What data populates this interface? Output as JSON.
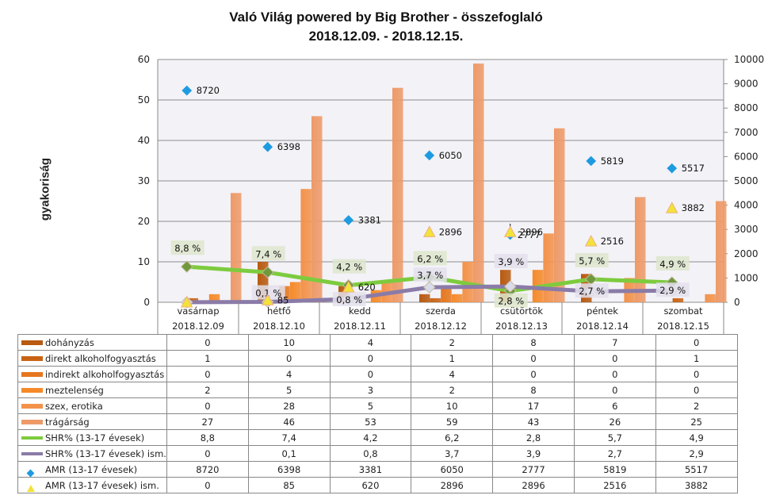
{
  "chart_data": {
    "type": "bar",
    "title": "Való Világ powered by Big Brother - összefoglaló",
    "subtitle": "2018.12.09. - 2018.12.15.",
    "ylabel": "gyakoriság",
    "ylim": [
      0,
      60
    ],
    "y_ticks": [
      "0",
      "10",
      "20",
      "30",
      "40",
      "50",
      "60"
    ],
    "y2lim": [
      0,
      10000
    ],
    "y2_ticks": [
      "0",
      "1000",
      "2000",
      "3000",
      "4000",
      "5000",
      "6000",
      "7000",
      "8000",
      "9000",
      "10000"
    ],
    "grid": true,
    "categories": [
      "vasárnap",
      "hétfő",
      "kedd",
      "szerda",
      "csütörtök",
      "péntek",
      "szombat"
    ],
    "dates": [
      "2018.12.09",
      "2018.12.10",
      "2018.12.11",
      "2018.12.12",
      "2018.12.13",
      "2018.12.14",
      "2018.12.15"
    ],
    "series": [
      {
        "name": "dohányzás",
        "kind": "bar",
        "axis": "left",
        "color": "#B85A10",
        "values": [
          0,
          10,
          4,
          2,
          8,
          7,
          0
        ]
      },
      {
        "name": "direkt alkoholfogyasztás",
        "kind": "bar",
        "axis": "left",
        "color": "#C96314",
        "values": [
          1,
          0,
          0,
          1,
          0,
          0,
          1
        ]
      },
      {
        "name": "indirekt alkoholfogyasztás",
        "kind": "bar",
        "axis": "left",
        "color": "#E5771E",
        "values": [
          0,
          4,
          0,
          4,
          0,
          0,
          0
        ]
      },
      {
        "name": "meztelenség",
        "kind": "bar",
        "axis": "left",
        "color": "#F58A2A",
        "values": [
          2,
          5,
          3,
          2,
          8,
          0,
          0
        ]
      },
      {
        "name": "szex, erotika",
        "kind": "bar",
        "axis": "left",
        "color": "#F3924A",
        "values": [
          0,
          28,
          5,
          10,
          17,
          6,
          2
        ]
      },
      {
        "name": "trágárság",
        "kind": "bar",
        "axis": "left",
        "color": "#EE9A68",
        "values": [
          27,
          46,
          53,
          59,
          43,
          26,
          25
        ]
      },
      {
        "name": "SHR% (13-17 évesek)",
        "kind": "line",
        "axis": "left",
        "color": "#7DCB3E",
        "values": [
          8.8,
          7.4,
          4.2,
          6.2,
          2.8,
          5.7,
          4.9
        ],
        "labels": [
          "8,8 %",
          "7,4 %",
          "4,2 %",
          "6,2 %",
          "2,8 %",
          "5,7 %",
          "4,9 %"
        ]
      },
      {
        "name": "SHR% (13-17 évesek) ism.",
        "kind": "line",
        "axis": "left",
        "color": "#8A7BA8",
        "values": [
          0,
          0.1,
          0.8,
          3.7,
          3.9,
          2.7,
          2.9
        ],
        "labels": [
          "",
          "0,1 %",
          "0,8 %",
          "3,7 %",
          "3,9 %",
          "2,7 %",
          "2,9 %"
        ]
      },
      {
        "name": "AMR (13-17 évesek)",
        "kind": "marker",
        "axis": "right",
        "color": "#1E9BE0",
        "values": [
          8720,
          6398,
          3381,
          6050,
          2777,
          5819,
          5517
        ]
      },
      {
        "name": "AMR (13-17 évesek) ism.",
        "kind": "marker",
        "axis": "right",
        "color": "#F2E23A",
        "values": [
          0,
          85,
          620,
          2896,
          2896,
          2516,
          3882
        ]
      }
    ],
    "table_rows": [
      {
        "label": "dohányzás",
        "cells": [
          "0",
          "10",
          "4",
          "2",
          "8",
          "7",
          "0"
        ]
      },
      {
        "label": "direkt alkoholfogyasztás",
        "cells": [
          "1",
          "0",
          "0",
          "1",
          "0",
          "0",
          "1"
        ]
      },
      {
        "label": "indirekt alkoholfogyasztás",
        "cells": [
          "0",
          "4",
          "0",
          "4",
          "0",
          "0",
          "0"
        ]
      },
      {
        "label": "meztelenség",
        "cells": [
          "2",
          "5",
          "3",
          "2",
          "8",
          "0",
          "0"
        ]
      },
      {
        "label": "szex, erotika",
        "cells": [
          "0",
          "28",
          "5",
          "10",
          "17",
          "6",
          "2"
        ]
      },
      {
        "label": "trágárság",
        "cells": [
          "27",
          "46",
          "53",
          "59",
          "43",
          "26",
          "25"
        ]
      },
      {
        "label": "SHR% (13-17 évesek)",
        "cells": [
          "8,8",
          "7,4",
          "4,2",
          "6,2",
          "2,8",
          "5,7",
          "4,9"
        ]
      },
      {
        "label": "SHR% (13-17 évesek) ism.",
        "cells": [
          "0",
          "0,1",
          "0,8",
          "3,7",
          "3,9",
          "2,7",
          "2,9"
        ]
      },
      {
        "label": "AMR (13-17 évesek)",
        "cells": [
          "8720",
          "6398",
          "3381",
          "6050",
          "2777",
          "5819",
          "5517"
        ]
      },
      {
        "label": "AMR (13-17 évesek) ism.",
        "cells": [
          "0",
          "85",
          "620",
          "2896",
          "2896",
          "2516",
          "3882"
        ]
      }
    ]
  }
}
